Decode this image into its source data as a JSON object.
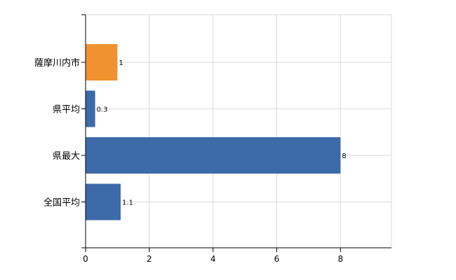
{
  "chart_data": {
    "type": "bar",
    "orientation": "horizontal",
    "categories": [
      "薩摩川内市",
      "県平均",
      "県最大",
      "全国平均"
    ],
    "values": [
      1,
      0.3,
      8,
      1.1
    ],
    "data_labels": [
      "1",
      "0.3",
      "8",
      "1.1"
    ],
    "bar_colors": [
      "#f0922f",
      "#3d6aa9",
      "#3d6aa9",
      "#3d6aa9"
    ],
    "xlim": [
      0,
      9.6
    ],
    "xticks": [
      0,
      2,
      4,
      6,
      8
    ],
    "grid": true,
    "title": "",
    "xlabel": "",
    "ylabel": ""
  },
  "colors": {
    "highlight": "#f0922f",
    "primary": "#3d6aa9",
    "grid": "#d9d9d9",
    "axis": "#000000"
  }
}
